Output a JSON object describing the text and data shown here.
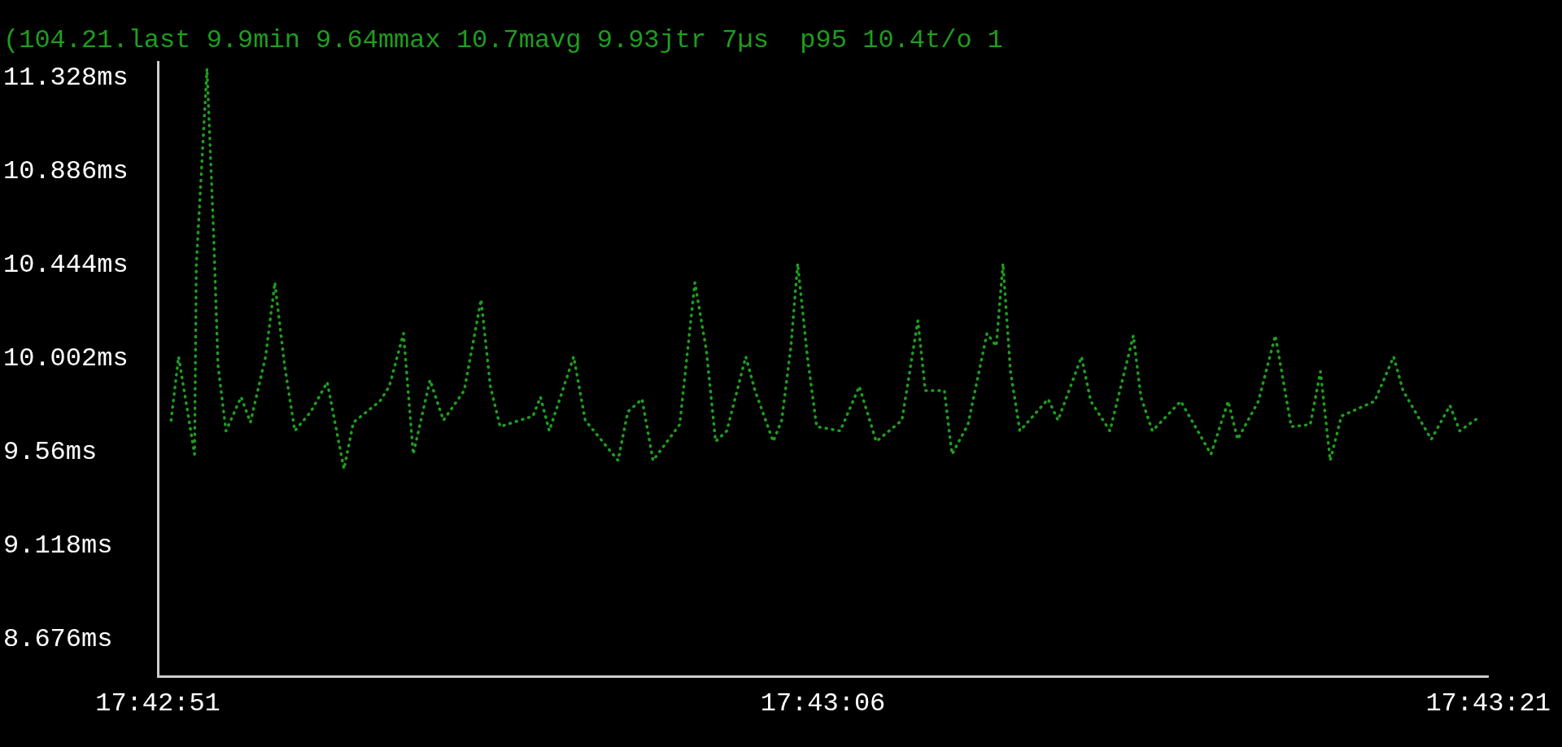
{
  "chart_data": {
    "type": "line",
    "title": "(104.21.last 9.9min 9.64mmax 10.7mavg 9.93jtr 7µs  p95 10.4t/o 1",
    "x": [
      17.71425,
      17.714297,
      17.714397,
      17.714408,
      17.714475,
      17.714517,
      17.714544,
      17.714594,
      17.714689,
      17.714747,
      17.714842,
      17.7149,
      17.714961,
      17.715025,
      17.715125,
      17.715228,
      17.715333,
      17.715392,
      17.715558,
      17.715617,
      17.715706,
      17.715767,
      17.715872,
      17.715956,
      17.716086,
      17.716192,
      17.71625,
      17.716311,
      17.716517,
      17.716564,
      17.716619,
      17.716772,
      17.716844,
      17.71705,
      17.717111,
      17.7172,
      17.717269,
      17.717436,
      17.717531,
      17.717603,
      17.717661,
      17.717731,
      17.71785,
      17.717908,
      17.718022,
      17.718075,
      17.718133,
      17.718175,
      17.718236,
      17.718294,
      17.718442,
      17.718561,
      17.718667,
      17.718828,
      17.718928,
      17.718975,
      17.719094,
      17.719142,
      17.719242,
      17.719361,
      17.719419,
      17.719461,
      17.719508,
      17.719567,
      17.719744,
      17.719806,
      17.719953,
      17.720011,
      17.720131,
      17.720278,
      17.720325,
      17.720397,
      17.720575,
      17.720764,
      17.720872,
      17.720931,
      17.721061,
      17.721167,
      17.721267,
      17.721386,
      17.72145,
      17.721511,
      17.721581,
      17.721789,
      17.721908,
      17.721967,
      17.722144,
      17.722261,
      17.722322,
      17.722453
    ],
    "series": [
      {
        "color": "#1e9e1e",
        "values": [
          9.71,
          10.01,
          9.55,
          10.44,
          11.37,
          10.58,
          9.97,
          9.66,
          9.82,
          9.7,
          10.01,
          10.36,
          9.97,
          9.66,
          9.75,
          9.89,
          9.48,
          9.7,
          9.8,
          9.87,
          10.12,
          9.55,
          9.9,
          9.71,
          9.85,
          10.28,
          9.87,
          9.68,
          9.73,
          9.82,
          9.66,
          10.01,
          9.71,
          9.52,
          9.75,
          9.81,
          9.52,
          9.69,
          10.36,
          10.04,
          9.61,
          9.66,
          10.01,
          9.85,
          9.61,
          9.71,
          10.06,
          10.45,
          10.01,
          9.68,
          9.66,
          9.87,
          9.61,
          9.71,
          10.18,
          9.85,
          9.85,
          9.55,
          9.69,
          10.12,
          10.06,
          10.45,
          9.94,
          9.66,
          9.81,
          9.71,
          10.01,
          9.8,
          9.66,
          10.11,
          9.82,
          9.66,
          9.8,
          9.55,
          9.8,
          9.62,
          9.8,
          10.11,
          9.68,
          9.69,
          9.94,
          9.52,
          9.73,
          9.8,
          10.01,
          9.85,
          9.62,
          9.78,
          9.66,
          9.73
        ]
      }
    ],
    "xlim": [
      17.714167,
      17.7225
    ],
    "xticks": [
      {
        "value": 17.714167,
        "label": "17:42:51"
      },
      {
        "value": 17.718333,
        "label": "17:43:06"
      },
      {
        "value": 17.7225,
        "label": "17:43:21"
      }
    ],
    "ylim": [
      8.5,
      11.4
    ],
    "yticks": [
      {
        "value": 8.676,
        "label": "8.676ms"
      },
      {
        "value": 9.118,
        "label": "9.118ms"
      },
      {
        "value": 9.56,
        "label": "9.56ms"
      },
      {
        "value": 10.002,
        "label": "10.002ms"
      },
      {
        "value": 10.444,
        "label": "10.444ms"
      },
      {
        "value": 10.886,
        "label": "10.886ms"
      },
      {
        "value": 11.328,
        "label": "11.328ms"
      }
    ],
    "grid": false,
    "legend": false,
    "marker": "none",
    "line_style": "dotted"
  }
}
